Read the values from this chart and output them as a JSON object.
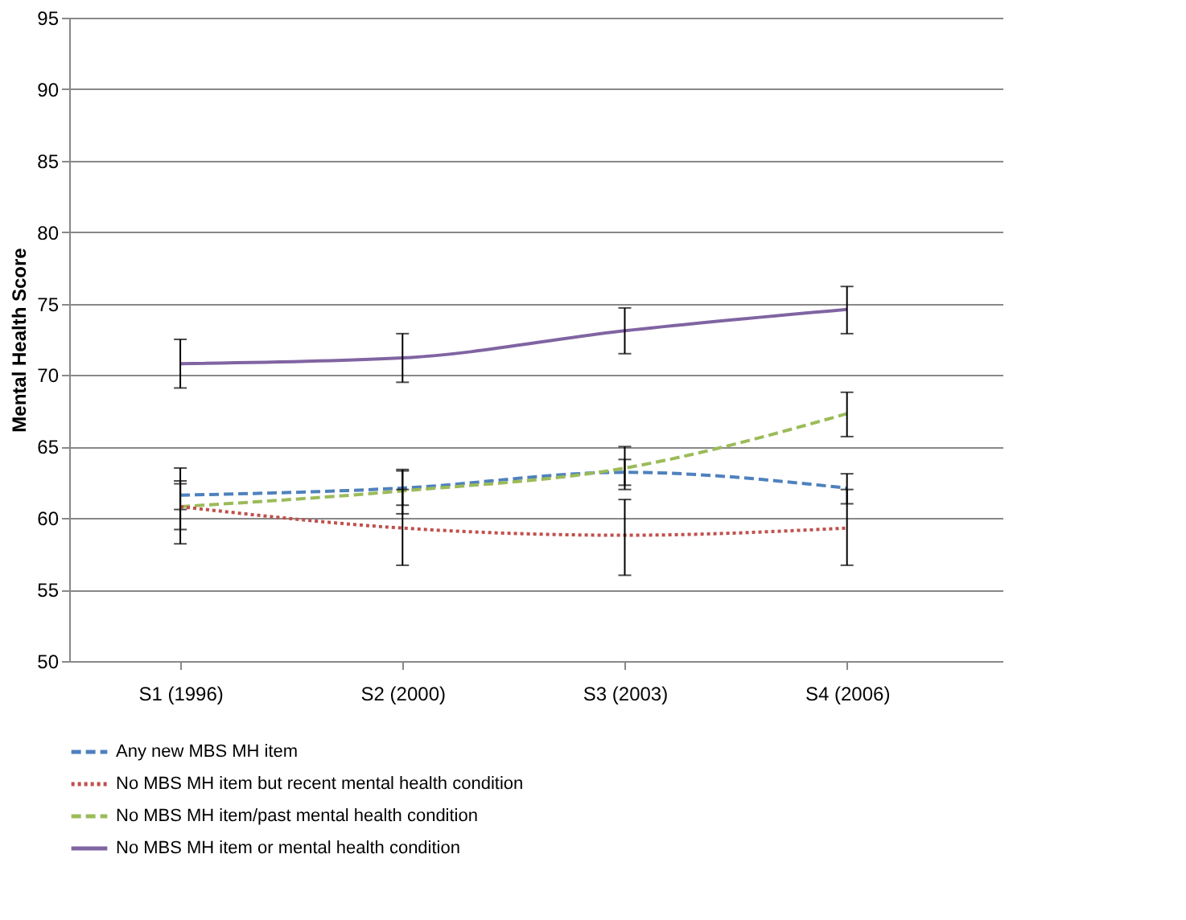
{
  "chart_data": {
    "type": "line",
    "ylabel": "Mental Health Score",
    "categories": [
      "S1 (1996)",
      "S2 (2000)",
      "S3 (2003)",
      "S4 (2006)"
    ],
    "series": [
      {
        "name": "Any new MBS MH item",
        "color": "#4f81bd",
        "line_style": "dashed",
        "values": [
          61.6,
          62.1,
          63.2,
          62.1
        ],
        "errors": [
          [
            60.6,
            62.6
          ],
          [
            60.9,
            63.4
          ],
          [
            62.3,
            64.1
          ],
          [
            61.0,
            63.1
          ]
        ]
      },
      {
        "name": "No MBS MH item but  recent mental health condition",
        "color": "#c0504d",
        "line_style": "dotted",
        "values": [
          60.8,
          59.3,
          58.8,
          59.3
        ],
        "errors": [
          [
            58.2,
            63.5
          ],
          [
            56.7,
            62.0
          ],
          [
            56.0,
            61.3
          ],
          [
            56.7,
            62.0
          ]
        ]
      },
      {
        "name": "No MBS MH item/past mental health condition",
        "color": "#9bbb59",
        "line_style": "dashed",
        "values": [
          60.8,
          61.9,
          63.5,
          67.3
        ],
        "errors": [
          [
            59.2,
            62.4
          ],
          [
            60.3,
            63.3
          ],
          [
            62.0,
            65.0
          ],
          [
            65.7,
            68.8
          ]
        ]
      },
      {
        "name": "No MBS MH item or  mental health condition",
        "color": "#8064a2",
        "line_style": "solid",
        "values": [
          70.8,
          71.2,
          73.1,
          74.6
        ],
        "errors": [
          [
            69.1,
            72.5
          ],
          [
            69.5,
            72.9
          ],
          [
            71.5,
            74.7
          ],
          [
            72.9,
            76.2
          ]
        ]
      }
    ],
    "ylim": [
      50,
      95
    ],
    "yticks": [
      50,
      55,
      60,
      65,
      70,
      75,
      80,
      85,
      90,
      95
    ],
    "grid": "y",
    "legend": "bottom",
    "marker": "none"
  }
}
